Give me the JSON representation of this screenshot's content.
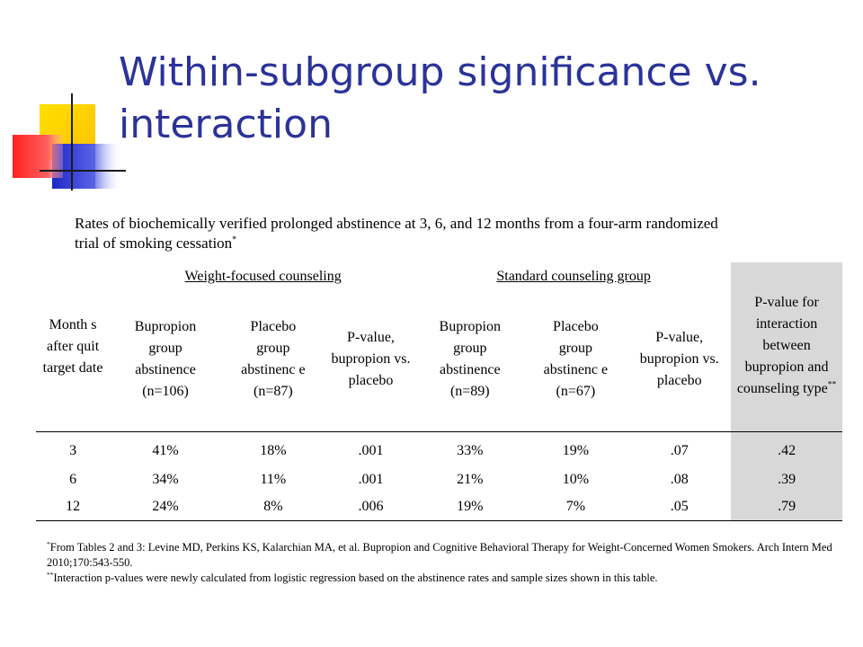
{
  "title": "Within-subgroup significance vs. interaction",
  "subtitle": {
    "text": "Rates of biochemically verified prolonged abstinence at 3, 6, and 12 months from a four-arm randomized trial of smoking cessation",
    "marker": "*"
  },
  "table": {
    "month_header": "Month s after quit target date",
    "groups": [
      {
        "label": "Weight-focused counseling"
      },
      {
        "label": "Standard counseling group"
      }
    ],
    "interaction_header": "P-value for interaction between bupropion and counseling type",
    "interaction_marker": "**",
    "subheaders": [
      "Bupropion group abstinence (n=106)",
      "Placebo group abstinenc e (n=87)",
      "P-value, bupropion vs. placebo",
      "Bupropion group abstinence (n=89)",
      "Placebo group abstinenc e (n=67)",
      "P-value, bupropion vs. placebo"
    ],
    "rows": [
      [
        "3",
        "41%",
        "18%",
        ".001",
        "33%",
        "19%",
        ".07",
        ".42"
      ],
      [
        "6",
        "34%",
        "11%",
        ".001",
        "21%",
        "10%",
        ".08",
        ".39"
      ],
      [
        "12",
        "24%",
        "8%",
        ".006",
        "19%",
        "7%",
        ".05",
        ".79"
      ]
    ],
    "interaction_column_color": "#d8d8d8"
  },
  "footnotes": [
    {
      "marker": "*",
      "text": "From Tables 2 and 3: Levine MD, Perkins KS, Kalarchian MA, et al. Bupropion and Cognitive Behavioral Therapy for Weight-Concerned Women Smokers. Arch Intern Med 2010;170:543-550."
    },
    {
      "marker": "**",
      "text": "Interaction p-values were newly calculated from logistic regression based on the abstinence rates and sample sizes shown in this table."
    }
  ],
  "colors": {
    "title": "#2b3399",
    "accent_yellow": "#ffd200",
    "accent_blue": "#2b33cc",
    "accent_red": "#ff3030"
  }
}
